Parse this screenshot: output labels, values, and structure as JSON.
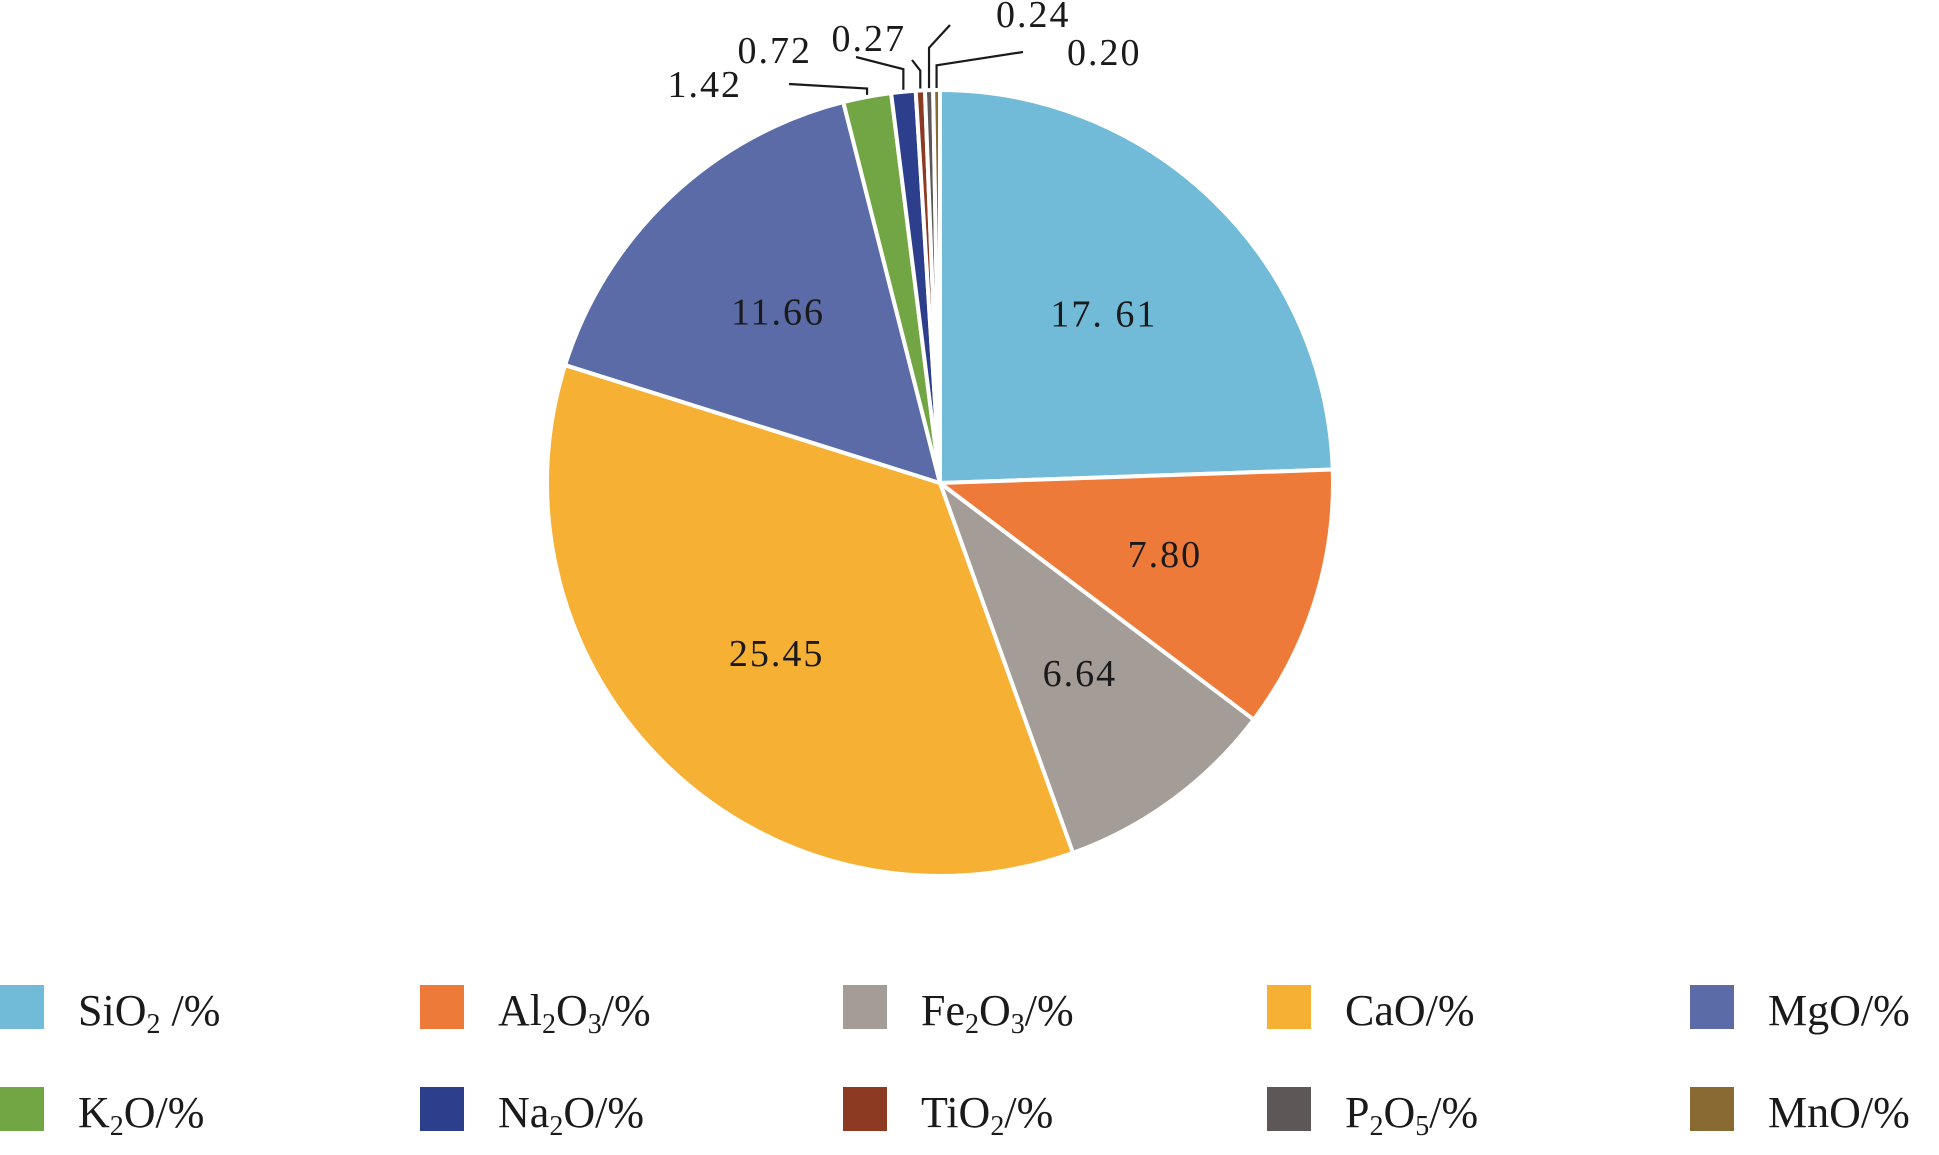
{
  "chart_data": {
    "type": "pie",
    "title": "",
    "slices": [
      {
        "name": "SiO2/%",
        "value": 17.61,
        "label": "17. 61",
        "color": "#71BBD9"
      },
      {
        "name": "Al2O3/%",
        "value": 7.8,
        "label": "7.80",
        "color": "#EE7A3A"
      },
      {
        "name": "Fe2O3/%",
        "value": 6.64,
        "label": "6.64",
        "color": "#A39C97"
      },
      {
        "name": "CaO/%",
        "value": 25.45,
        "label": "25.45",
        "color": "#F6B034"
      },
      {
        "name": "MgO/%",
        "value": 11.66,
        "label": "11.66",
        "color": "#5A6BA7"
      },
      {
        "name": "K2O/%",
        "value": 1.42,
        "label": "1.42",
        "color": "#72A544"
      },
      {
        "name": "Na2O/%",
        "value": 0.72,
        "label": "0.72",
        "color": "#2C3E8C"
      },
      {
        "name": "TiO2/%",
        "value": 0.27,
        "label": "0.27",
        "color": "#8C3A22"
      },
      {
        "name": "P2O5/%",
        "value": 0.24,
        "label": "0.24",
        "color": "#5E5757"
      },
      {
        "name": "MnO/%",
        "value": 0.2,
        "label": "0.20",
        "color": "#8A6A33"
      }
    ],
    "start_angle_deg": 0,
    "direction": "clockwise",
    "legend_position": "bottom",
    "legend_entries": [
      {
        "prefix": "SiO",
        "sub": "2",
        "rest": " /%",
        "color": "#71BBD9"
      },
      {
        "prefix": "Al",
        "sub": "2",
        "mid": "O",
        "sub2": "3",
        "rest": "/%",
        "color": "#EE7A3A"
      },
      {
        "prefix": "Fe",
        "sub": "2",
        "mid": "O",
        "sub2": "3",
        "rest": "/%",
        "color": "#A39C97"
      },
      {
        "prefix": "CaO/%",
        "color": "#F6B034"
      },
      {
        "prefix": "MgO/%",
        "color": "#5A6BA7"
      },
      {
        "prefix": "K",
        "sub": "2",
        "rest": "O/%",
        "color": "#72A544"
      },
      {
        "prefix": "Na",
        "sub": "2",
        "rest": "O/%",
        "color": "#2C3E8C"
      },
      {
        "prefix": "TiO",
        "sub": "2",
        "rest": "/%",
        "color": "#8C3A22"
      },
      {
        "prefix": "P",
        "sub": "2",
        "mid": "O",
        "sub2": "5",
        "rest": "/%",
        "color": "#5E5757"
      },
      {
        "prefix": "MnO/%",
        "color": "#8A6A33"
      }
    ]
  }
}
